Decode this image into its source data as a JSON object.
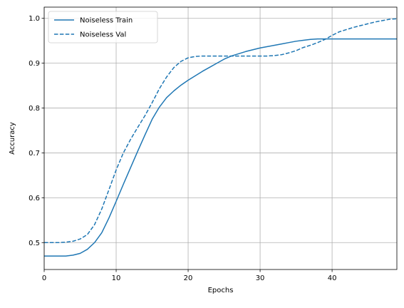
{
  "chart_data": {
    "type": "line",
    "title": "",
    "xlabel": "Epochs",
    "ylabel": "Accuracy",
    "xlim": [
      0,
      49
    ],
    "ylim": [
      0.44,
      1.025
    ],
    "x_ticks": [
      0,
      10,
      20,
      30,
      40
    ],
    "y_ticks": [
      0.5,
      0.6,
      0.7,
      0.8,
      0.9,
      1.0
    ],
    "x_tick_labels": [
      "0",
      "10",
      "20",
      "30",
      "40"
    ],
    "y_tick_labels": [
      "0.5",
      "0.6",
      "0.7",
      "0.8",
      "0.9",
      "1.0"
    ],
    "grid": true,
    "legend_position": "top-left",
    "colors": {
      "series": "#1f77b4",
      "grid": "#b0b0b0"
    },
    "x": [
      0,
      1,
      2,
      3,
      4,
      5,
      6,
      7,
      8,
      9,
      10,
      11,
      12,
      13,
      14,
      15,
      16,
      17,
      18,
      19,
      20,
      21,
      22,
      23,
      24,
      25,
      26,
      27,
      28,
      29,
      30,
      31,
      32,
      33,
      34,
      35,
      36,
      37,
      38,
      39,
      40,
      41,
      42,
      43,
      44,
      45,
      46,
      47,
      48,
      49
    ],
    "series": [
      {
        "name": "Noiseless Train",
        "style": "solid",
        "values": [
          0.47,
          0.47,
          0.47,
          0.47,
          0.472,
          0.476,
          0.485,
          0.5,
          0.522,
          0.555,
          0.592,
          0.63,
          0.667,
          0.704,
          0.74,
          0.775,
          0.802,
          0.823,
          0.838,
          0.851,
          0.862,
          0.872,
          0.882,
          0.891,
          0.9,
          0.909,
          0.916,
          0.921,
          0.926,
          0.93,
          0.934,
          0.937,
          0.94,
          0.943,
          0.946,
          0.949,
          0.951,
          0.953,
          0.954,
          0.954,
          0.954,
          0.954,
          0.954,
          0.954,
          0.954,
          0.954,
          0.954,
          0.954,
          0.954,
          0.954
        ]
      },
      {
        "name": "Noiseless Val",
        "style": "dashed",
        "values": [
          0.5,
          0.5,
          0.5,
          0.501,
          0.503,
          0.508,
          0.518,
          0.54,
          0.575,
          0.618,
          0.662,
          0.7,
          0.73,
          0.757,
          0.783,
          0.812,
          0.843,
          0.869,
          0.89,
          0.904,
          0.912,
          0.915,
          0.916,
          0.916,
          0.916,
          0.916,
          0.916,
          0.916,
          0.916,
          0.916,
          0.916,
          0.916,
          0.917,
          0.919,
          0.923,
          0.928,
          0.935,
          0.94,
          0.946,
          0.953,
          0.962,
          0.97,
          0.975,
          0.98,
          0.984,
          0.988,
          0.992,
          0.995,
          0.998,
          0.999
        ]
      }
    ]
  }
}
